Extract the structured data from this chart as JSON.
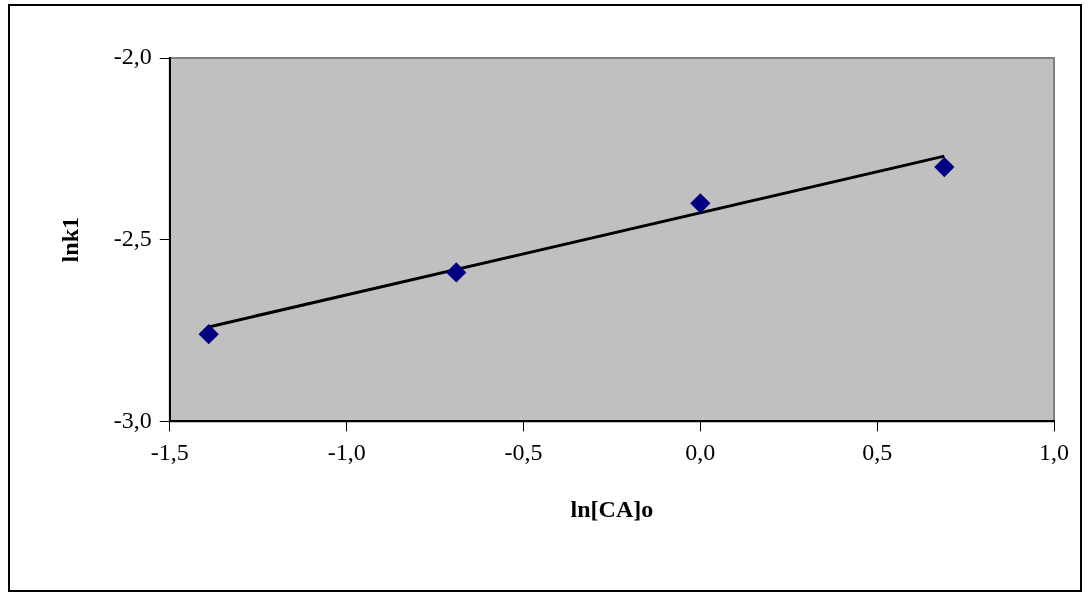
{
  "chart_data": {
    "type": "scatter",
    "xlabel": "ln[CA]o",
    "ylabel": "lnk1",
    "x": [
      -1.39,
      -0.69,
      0,
      0.69
    ],
    "series": [
      {
        "type": "scatter",
        "color": "#000080",
        "marker": "diamond",
        "values": [
          -2.76,
          -2.59,
          -2.4,
          -2.3
        ]
      },
      {
        "type": "line",
        "color": "#000000",
        "marker": "none",
        "x": [
          -1.39,
          0.69
        ],
        "values": [
          -2.74,
          -2.27
        ]
      }
    ],
    "xlim": [
      -1.5,
      1.0
    ],
    "ylim": [
      -3.0,
      -2.0
    ],
    "xticks": [
      {
        "value": -1.5,
        "label": "-1,5"
      },
      {
        "value": -1.0,
        "label": "-1,0"
      },
      {
        "value": -0.5,
        "label": "-0,5"
      },
      {
        "value": 0,
        "label": "0,0"
      },
      {
        "value": 0.5,
        "label": "0,5"
      },
      {
        "value": 1.0,
        "label": "1,0"
      }
    ],
    "yticks": [
      {
        "value": -3.0,
        "label": "-3,0"
      },
      {
        "value": -2.5,
        "label": "-2,5"
      },
      {
        "value": -2.0,
        "label": "-2,0"
      }
    ],
    "grid": false,
    "legend": false
  }
}
